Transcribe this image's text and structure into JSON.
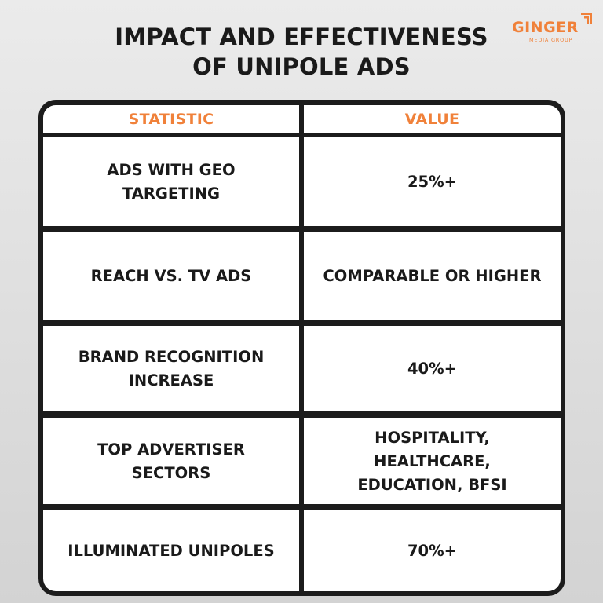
{
  "title": {
    "line1": "IMPACT AND EFFECTIVENESS",
    "line2": "OF UNIPOLE ADS"
  },
  "logo": {
    "word": "GINGER",
    "sub": "MEDIA GROUP",
    "color": "#f0813a",
    "icon": "signal-bars-icon"
  },
  "table": {
    "headers": {
      "statistic": "STATISTIC",
      "value": "VALUE"
    },
    "rows": [
      {
        "statistic": "ADS WITH GEO\nTARGETING",
        "value": "25%+"
      },
      {
        "statistic": "REACH VS. TV ADS",
        "value": "COMPARABLE OR HIGHER"
      },
      {
        "statistic": "BRAND RECOGNITION\nINCREASE",
        "value": "40%+"
      },
      {
        "statistic": "TOP ADVERTISER\nSECTORS",
        "value": "HOSPITALITY,\nHEALTHCARE,\nEDUCATION, BFSI"
      },
      {
        "statistic": "ILLUMINATED UNIPOLES",
        "value": "70%+"
      }
    ]
  },
  "colors": {
    "accent": "#f0813a",
    "border": "#1c1c1c",
    "text": "#1a1a1a"
  }
}
